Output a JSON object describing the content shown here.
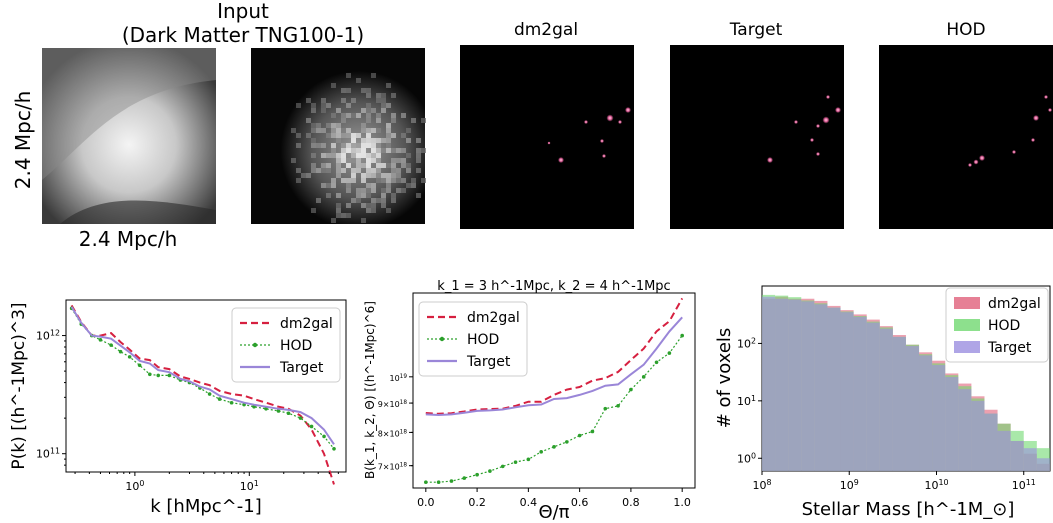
{
  "top_row": {
    "input_title_line1": "Input",
    "input_title_line2": "(Dark Matter TNG100-1)",
    "axis_label_y": "2.4 Mpc/h",
    "axis_label_x": "2.4 Mpc/h",
    "panel_titles": [
      "dm2gal",
      "Target",
      "HOD"
    ],
    "colors": {
      "dm_bg": "#808080",
      "panel_bg": "#000000",
      "galaxy": "#e0609a"
    }
  },
  "chart_data": [
    {
      "type": "line",
      "xlabel": "k [hMpc^-1]",
      "ylabel": "P(k)  [(h^-1Mpc)^3]",
      "x_scale": "log",
      "y_scale": "log",
      "xlim": [
        0.25,
        70
      ],
      "ylim": [
        70000000000,
        2000000000000
      ],
      "x_ticks": [
        1,
        10
      ],
      "x_tick_labels": [
        "10^0",
        "10^1"
      ],
      "y_ticks": [
        100000000000,
        1000000000000
      ],
      "y_tick_labels": [
        "10^11",
        "10^12"
      ],
      "legend": "top-right",
      "x": [
        0.28,
        0.34,
        0.42,
        0.5,
        0.62,
        0.75,
        0.9,
        1.1,
        1.35,
        1.6,
        2.0,
        2.5,
        3.0,
        3.7,
        4.5,
        5.5,
        7.0,
        9.0,
        11,
        14,
        18,
        22,
        28,
        35,
        45,
        55
      ],
      "series": [
        {
          "name": "dm2gal",
          "color": "#d62040",
          "dash": "dashed",
          "values": [
            1800000000000.0,
            1300000000000.0,
            1000000000000.0,
            1000000000000.0,
            1050000000000.0,
            880000000000.0,
            760000000000.0,
            640000000000.0,
            620000000000.0,
            540000000000.0,
            520000000000.0,
            450000000000.0,
            430000000000.0,
            400000000000.0,
            380000000000.0,
            340000000000.0,
            320000000000.0,
            310000000000.0,
            290000000000.0,
            270000000000.0,
            250000000000.0,
            240000000000.0,
            210000000000.0,
            160000000000.0,
            100000000000.0,
            55000000000.0
          ]
        },
        {
          "name": "HOD",
          "color": "#2ca02c",
          "dash": "dotted-marker",
          "values": [
            1700000000000.0,
            1250000000000.0,
            1000000000000.0,
            920000000000.0,
            830000000000.0,
            730000000000.0,
            660000000000.0,
            560000000000.0,
            470000000000.0,
            460000000000.0,
            460000000000.0,
            420000000000.0,
            400000000000.0,
            360000000000.0,
            320000000000.0,
            290000000000.0,
            270000000000.0,
            260000000000.0,
            250000000000.0,
            240000000000.0,
            230000000000.0,
            220000000000.0,
            200000000000.0,
            170000000000.0,
            140000000000.0,
            110000000000.0
          ]
        },
        {
          "name": "Target",
          "color": "#9a86d8",
          "dash": "solid",
          "values": [
            1750000000000.0,
            1280000000000.0,
            1000000000000.0,
            980000000000.0,
            940000000000.0,
            820000000000.0,
            720000000000.0,
            610000000000.0,
            580000000000.0,
            510000000000.0,
            490000000000.0,
            430000000000.0,
            410000000000.0,
            370000000000.0,
            350000000000.0,
            310000000000.0,
            290000000000.0,
            270000000000.0,
            260000000000.0,
            250000000000.0,
            240000000000.0,
            235000000000.0,
            225000000000.0,
            200000000000.0,
            160000000000.0,
            120000000000.0
          ]
        }
      ]
    },
    {
      "type": "line",
      "title": "k_1 = 3 h^-1Mpc, k_2 = 4 h^-1Mpc",
      "xlabel": "Θ/π",
      "ylabel": "B(k_1, k_2, Θ) [(h^-1Mpc)^6]",
      "y_scale": "log",
      "xlim": [
        -0.05,
        1.05
      ],
      "ylim": [
        6400000000000000000,
        14000000000000000000
      ],
      "x_ticks": [
        0.0,
        0.2,
        0.4,
        0.6,
        0.8,
        1.0
      ],
      "x_tick_labels": [
        "0.0",
        "0.2",
        "0.4",
        "0.6",
        "0.8",
        "1.0"
      ],
      "y_ticks": [
        7000000000000000000,
        8000000000000000000,
        9000000000000000000,
        10000000000000000000
      ],
      "y_tick_labels": [
        "7×10^18",
        "8×10^18",
        "9×10^18",
        "10^19"
      ],
      "legend": "top-left",
      "x": [
        0.0,
        0.05,
        0.1,
        0.15,
        0.2,
        0.25,
        0.3,
        0.35,
        0.4,
        0.45,
        0.5,
        0.55,
        0.6,
        0.65,
        0.7,
        0.75,
        0.8,
        0.85,
        0.9,
        0.95,
        1.0
      ],
      "series": [
        {
          "name": "dm2gal",
          "color": "#d62040",
          "dash": "dashed",
          "values": [
            8.65e+18,
            8.62e+18,
            8.64e+18,
            8.7e+18,
            8.77e+18,
            8.79e+18,
            8.8e+18,
            8.9e+18,
            9.05e+18,
            9.05e+18,
            9.3e+18,
            9.5e+18,
            9.6e+18,
            9.85e+18,
            9.95e+18,
            1.02e+19,
            1.07e+19,
            1.12e+19,
            1.2e+19,
            1.25e+19,
            1.37e+19
          ]
        },
        {
          "name": "HOD",
          "color": "#2ca02c",
          "dash": "dotted-marker",
          "values": [
            6.55e+18,
            6.55e+18,
            6.58e+18,
            6.66e+18,
            6.75e+18,
            6.85e+18,
            6.98e+18,
            7.1e+18,
            7.18e+18,
            7.4e+18,
            7.55e+18,
            7.7e+18,
            7.9e+18,
            8.03e+18,
            8.8e+18,
            8.9e+18,
            9.5e+18,
            1e+19,
            1.06e+19,
            1.1e+19,
            1.18e+19
          ]
        },
        {
          "name": "Target",
          "color": "#9a86d8",
          "dash": "solid",
          "values": [
            8.6e+18,
            8.58e+18,
            8.6e+18,
            8.66e+18,
            8.72e+18,
            8.74e+18,
            8.77e+18,
            8.85e+18,
            8.92e+18,
            8.95e+18,
            9.15e+18,
            9.18e+18,
            9.3e+18,
            9.45e+18,
            9.65e+18,
            9.7e+18,
            1.01e+19,
            1.05e+19,
            1.12e+19,
            1.2e+19,
            1.27e+19
          ]
        }
      ]
    },
    {
      "type": "bar",
      "subtype": "histogram",
      "xlabel": "Stellar Mass [h^-1M_⊙]",
      "ylabel": "# of voxels",
      "x_scale": "log",
      "y_scale": "log",
      "xlim": [
        100000000,
        200000000000
      ],
      "ylim": [
        0.6,
        1000
      ],
      "x_ticks": [
        100000000,
        1000000000,
        10000000000,
        100000000000
      ],
      "x_tick_labels": [
        "10^8",
        "10^9",
        "10^10",
        "10^11"
      ],
      "y_ticks": [
        1,
        10,
        100
      ],
      "y_tick_labels": [
        "10^0",
        "10^1",
        "10^2"
      ],
      "legend": "top-right",
      "log_mass_bins": [
        8.0,
        8.15,
        8.3,
        8.45,
        8.6,
        8.75,
        8.9,
        9.05,
        9.2,
        9.35,
        9.5,
        9.65,
        9.8,
        9.95,
        10.1,
        10.25,
        10.4,
        10.55,
        10.7,
        10.85,
        11.0,
        11.15,
        11.3
      ],
      "series": [
        {
          "name": "dm2gal",
          "color": "#e0607a",
          "values": [
            600,
            650,
            600,
            600,
            550,
            450,
            380,
            320,
            260,
            200,
            140,
            95,
            70,
            50,
            30,
            20,
            12,
            7,
            4,
            2,
            1.2,
            0.8
          ]
        },
        {
          "name": "HOD",
          "color": "#70d870",
          "values": [
            700,
            680,
            640,
            560,
            500,
            420,
            360,
            300,
            240,
            190,
            130,
            95,
            65,
            45,
            28,
            18,
            11,
            6,
            4,
            3,
            2,
            1.5
          ]
        },
        {
          "name": "Target",
          "color": "#9b8fe0",
          "values": [
            650,
            600,
            580,
            540,
            480,
            420,
            350,
            290,
            230,
            180,
            130,
            90,
            62,
            42,
            26,
            16,
            10,
            6,
            3,
            2,
            1.5,
            1
          ]
        }
      ]
    }
  ]
}
